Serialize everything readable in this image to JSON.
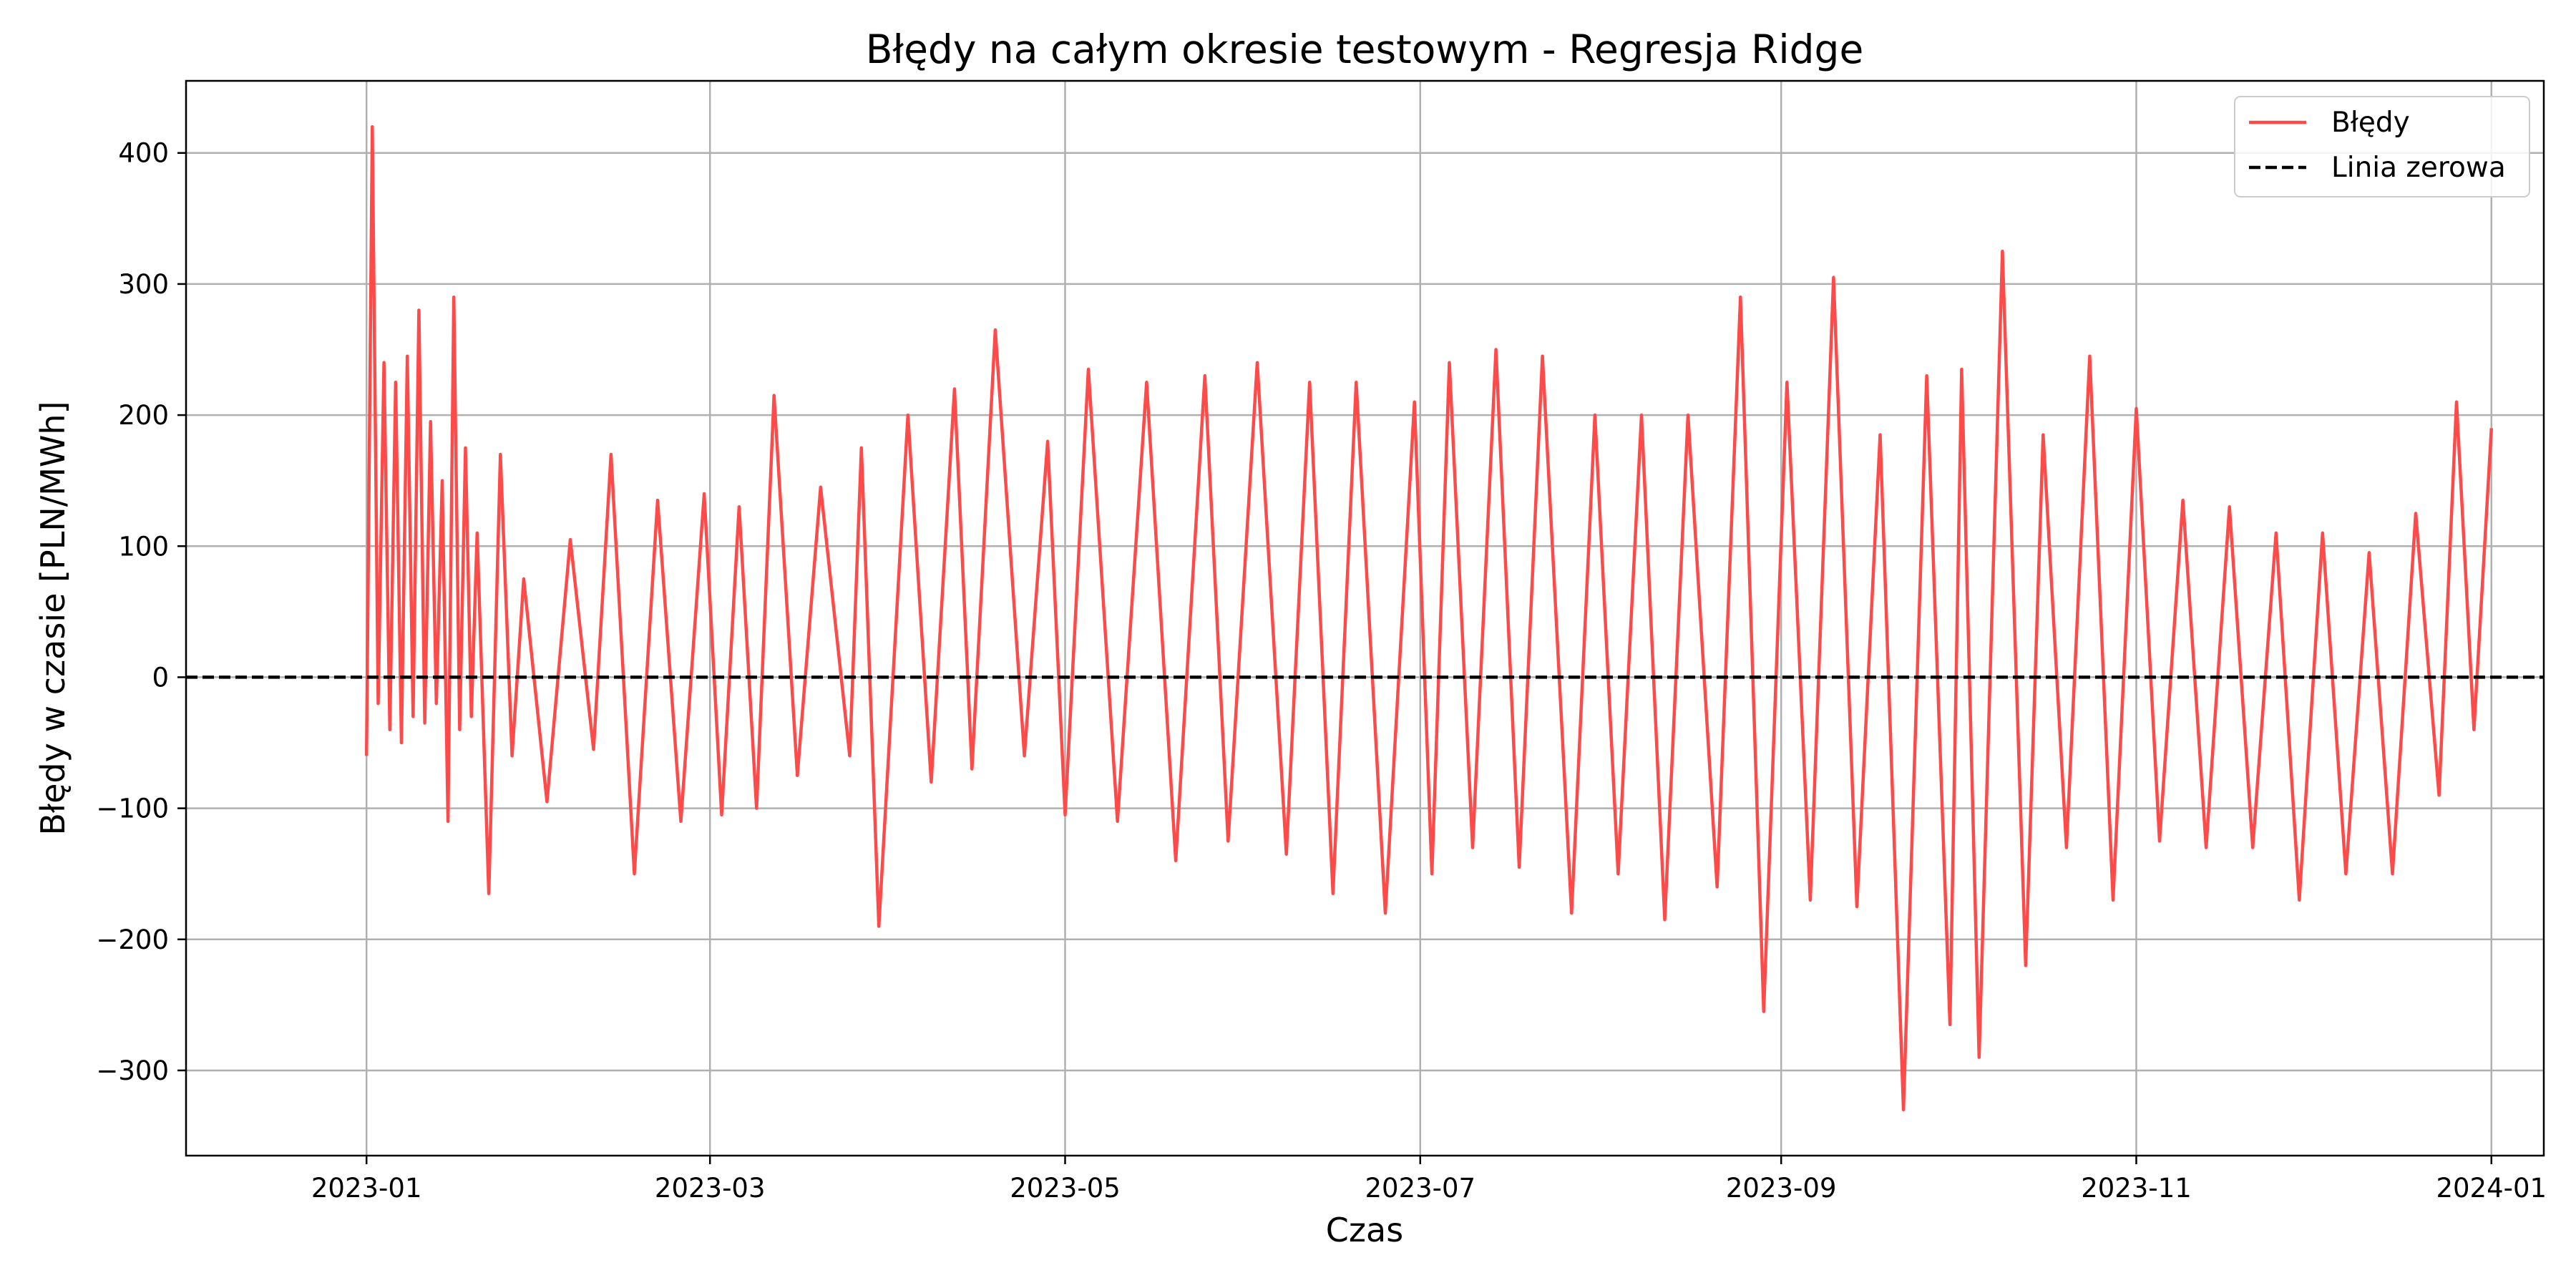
{
  "chart_data": {
    "type": "line",
    "title": "Błędy na całym okresie testowym - Regresja Ridge",
    "xlabel": "Czas",
    "ylabel": "Błędy w czasie [PLN/MWh]",
    "x_ticks": [
      "2023-01",
      "2023-03",
      "2023-05",
      "2023-07",
      "2023-09",
      "2023-11",
      "2024-01"
    ],
    "y_ticks": [
      400,
      300,
      200,
      100,
      0,
      -100,
      -200,
      -300
    ],
    "y_tick_labels": [
      "400",
      "300",
      "200",
      "100",
      "0",
      "−100",
      "−200",
      "−300"
    ],
    "xlim": [
      "2022-12-01",
      "2024-01-10"
    ],
    "ylim": [
      -365,
      455
    ],
    "grid": true,
    "legend_position": "top-right",
    "colors": {
      "errors": "#ff4a4a",
      "zero_line": "#000000",
      "grid": "#b0b0b0"
    },
    "series": [
      {
        "name": "Błędy",
        "style": "solid",
        "color": "#ff4a4a",
        "x": [
          "2023-01-01",
          "2023-01-02",
          "2023-01-03",
          "2023-01-04",
          "2023-01-05",
          "2023-01-06",
          "2023-01-07",
          "2023-01-08",
          "2023-01-09",
          "2023-01-10",
          "2023-01-11",
          "2023-01-12",
          "2023-01-13",
          "2023-01-14",
          "2023-01-15",
          "2023-01-16",
          "2023-01-17",
          "2023-01-18",
          "2023-01-19",
          "2023-01-20",
          "2023-01-22",
          "2023-01-24",
          "2023-01-26",
          "2023-01-28",
          "2023-02-01",
          "2023-02-05",
          "2023-02-09",
          "2023-02-12",
          "2023-02-16",
          "2023-02-20",
          "2023-02-24",
          "2023-02-28",
          "2023-03-03",
          "2023-03-06",
          "2023-03-09",
          "2023-03-12",
          "2023-03-16",
          "2023-03-20",
          "2023-03-25",
          "2023-03-27",
          "2023-03-30",
          "2023-04-04",
          "2023-04-08",
          "2023-04-12",
          "2023-04-15",
          "2023-04-19",
          "2023-04-24",
          "2023-04-28",
          "2023-05-01",
          "2023-05-05",
          "2023-05-10",
          "2023-05-15",
          "2023-05-20",
          "2023-05-25",
          "2023-05-29",
          "2023-06-03",
          "2023-06-08",
          "2023-06-12",
          "2023-06-16",
          "2023-06-20",
          "2023-06-25",
          "2023-06-30",
          "2023-07-03",
          "2023-07-06",
          "2023-07-10",
          "2023-07-14",
          "2023-07-18",
          "2023-07-22",
          "2023-07-27",
          "2023-07-31",
          "2023-08-04",
          "2023-08-08",
          "2023-08-12",
          "2023-08-16",
          "2023-08-21",
          "2023-08-25",
          "2023-08-29",
          "2023-09-02",
          "2023-09-06",
          "2023-09-10",
          "2023-09-14",
          "2023-09-18",
          "2023-09-22",
          "2023-09-26",
          "2023-09-30",
          "2023-10-02",
          "2023-10-05",
          "2023-10-09",
          "2023-10-13",
          "2023-10-16",
          "2023-10-20",
          "2023-10-24",
          "2023-10-28",
          "2023-11-01",
          "2023-11-05",
          "2023-11-09",
          "2023-11-13",
          "2023-11-17",
          "2023-11-21",
          "2023-11-25",
          "2023-11-29",
          "2023-12-03",
          "2023-12-07",
          "2023-12-11",
          "2023-12-15",
          "2023-12-19",
          "2023-12-23",
          "2023-12-26",
          "2023-12-29",
          "2024-01-01"
        ],
        "y": [
          -60,
          420,
          -20,
          240,
          -40,
          225,
          -50,
          245,
          -30,
          280,
          -35,
          195,
          -20,
          150,
          -110,
          290,
          -40,
          175,
          -30,
          110,
          -165,
          170,
          -60,
          75,
          -95,
          105,
          -55,
          170,
          -150,
          135,
          -110,
          140,
          -105,
          130,
          -100,
          215,
          -75,
          145,
          -60,
          175,
          -190,
          200,
          -80,
          220,
          -70,
          265,
          -60,
          180,
          -105,
          235,
          -110,
          225,
          -140,
          230,
          -125,
          240,
          -135,
          225,
          -165,
          225,
          -180,
          210,
          -150,
          240,
          -130,
          250,
          -145,
          245,
          -180,
          200,
          -150,
          200,
          -185,
          200,
          -160,
          290,
          -255,
          225,
          -170,
          305,
          -175,
          185,
          -330,
          230,
          -265,
          235,
          -290,
          325,
          -220,
          185,
          -130,
          245,
          -170,
          205,
          -125,
          135,
          -130,
          130,
          -130,
          110,
          -170,
          110,
          -150,
          95,
          -150,
          125,
          -90,
          210,
          -40,
          190
        ]
      },
      {
        "name": "Linia zerowa",
        "style": "dashed",
        "color": "#000000",
        "y_constant": 0
      }
    ]
  }
}
